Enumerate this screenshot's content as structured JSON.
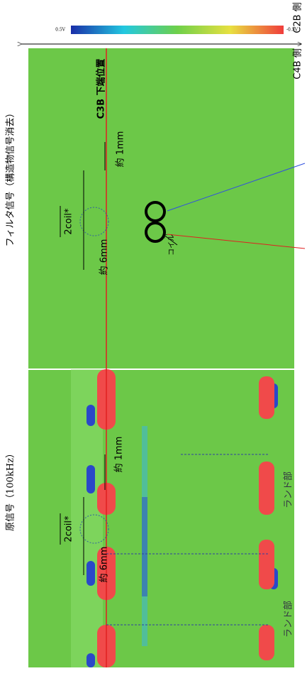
{
  "labels": {
    "side_top": "C2B 側",
    "side_bottom": "C4B 側",
    "scale_min": "0.5V",
    "scale_max": "-0.5V",
    "filter_title": "フィルタ信号（構造物信号消去）",
    "raw_title": "原信号（100kHz）",
    "edge": "C3B 下端位置",
    "filter_gap": "約 1mm",
    "filter_coil": "2coil*",
    "filter_width": "約 6mm",
    "coil": "コイル",
    "raw_coil": "2coil*",
    "raw_width": "約 6mm",
    "raw_gap": "約 1mm",
    "land_1": "ランド部",
    "land_2": "ランド部"
  }
}
